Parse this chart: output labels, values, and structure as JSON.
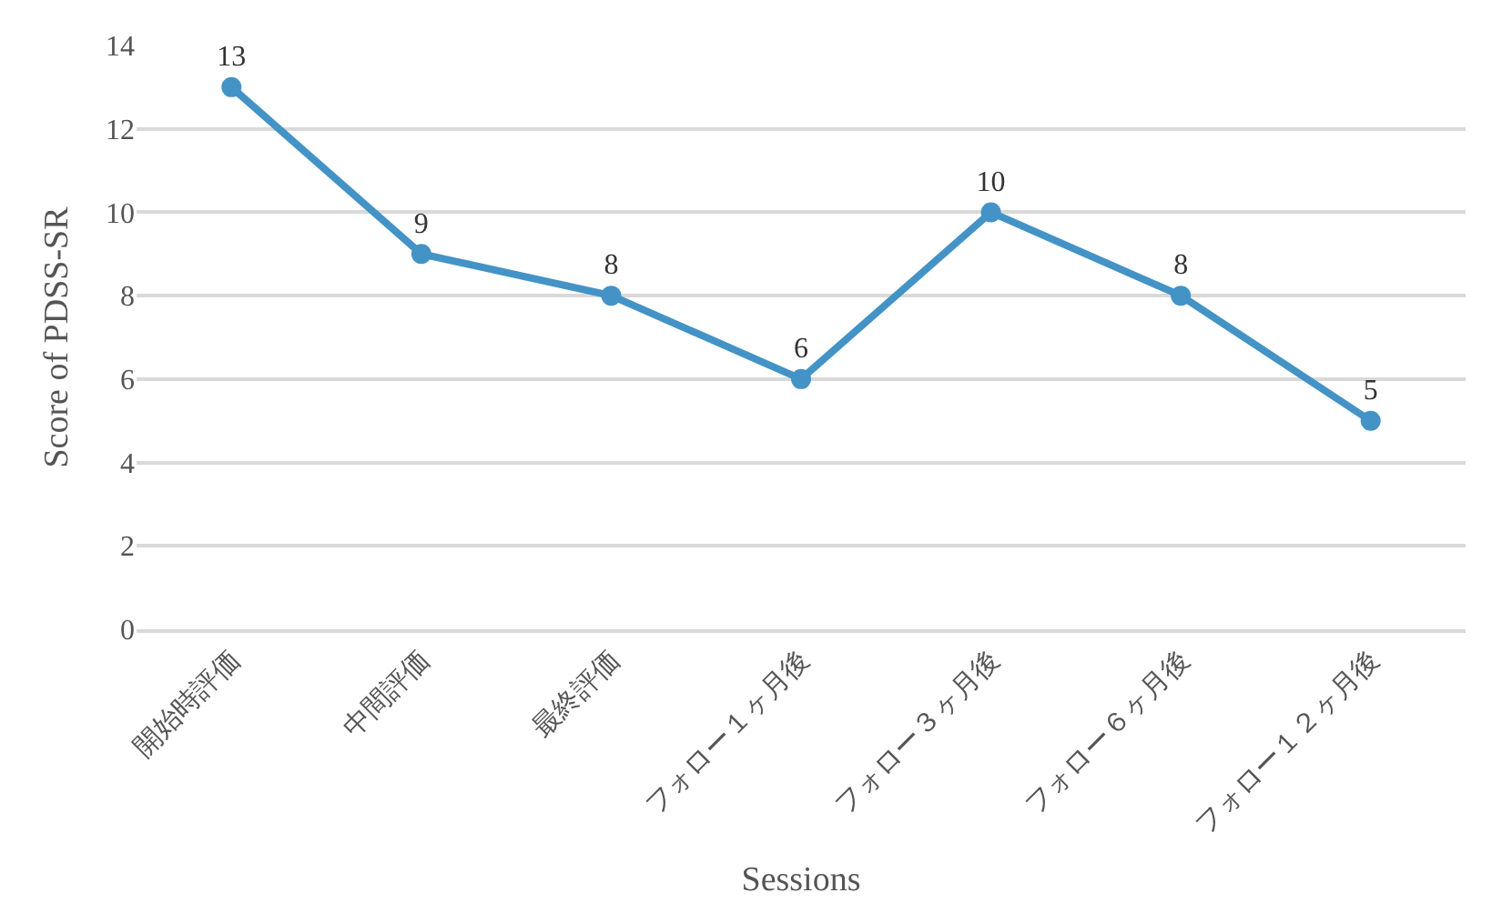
{
  "chart_data": {
    "type": "line",
    "xlabel": "Sessions",
    "ylabel": "Score of PDSS-SR",
    "categories": [
      "開始時評価",
      "中間評価",
      "最終評価",
      "フォロー１ヶ月後",
      "フォロー３ヶ月後",
      "フォロー６ヶ月後",
      "フォロー１２ヶ月後"
    ],
    "series": [
      {
        "color": "#4393c6",
        "values": [
          13,
          9,
          8,
          6,
          10,
          8,
          5
        ]
      }
    ],
    "ylim": [
      0,
      14
    ],
    "yticks": [
      0,
      2,
      4,
      6,
      8,
      10,
      12,
      14
    ],
    "grid": "y",
    "marker": "circle",
    "line_style": "solid",
    "data_labels": true,
    "legend": false
  }
}
